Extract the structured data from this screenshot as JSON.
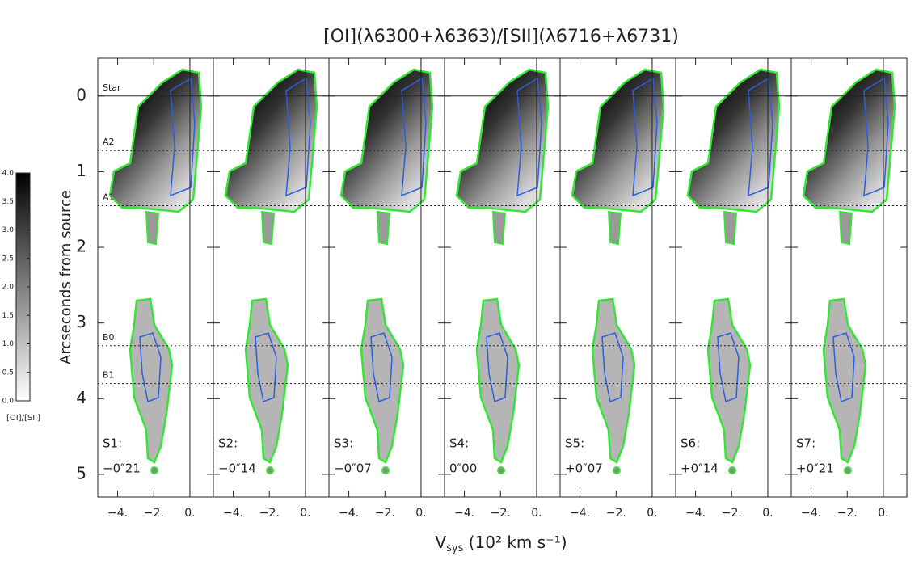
{
  "chart_data": {
    "type": "image-panels",
    "title": "[OI](λ6300+λ6363)/[SII](λ6716+λ6731)",
    "y_label": "Arcseconds from source",
    "x_label": {
      "main": "V",
      "sub": "sys",
      "rest": " (10² km s⁻¹)"
    },
    "ylim": [
      -0.5,
      5.3
    ],
    "yticks": [
      0,
      1,
      2,
      3,
      4,
      5
    ],
    "xlim": [
      -5.1,
      1.3
    ],
    "xticks": [
      {
        "value": -4,
        "label": "−4."
      },
      {
        "value": -2,
        "label": "−2."
      },
      {
        "value": 0,
        "label": "0."
      }
    ],
    "x_reference": 0,
    "reference_lines": [
      {
        "label": "Star",
        "value": 0
      },
      {
        "label": "A2",
        "value": 0.72
      },
      {
        "label": "A1",
        "value": 1.45
      },
      {
        "label": "B0",
        "value": 3.3
      },
      {
        "label": "B1",
        "value": 3.8
      }
    ],
    "panels": [
      {
        "name": "S1:",
        "offset": "−0″21"
      },
      {
        "name": "S2:",
        "offset": "−0″14"
      },
      {
        "name": "S3:",
        "offset": "−0″07"
      },
      {
        "name": "S4:",
        "offset": "0″00"
      },
      {
        "name": "S5:",
        "offset": "+0″07"
      },
      {
        "name": "S6:",
        "offset": "+0″14"
      },
      {
        "name": "S7:",
        "offset": "+0″21"
      }
    ],
    "colorbar": {
      "label": "[OI]/[SII]",
      "ylim": [
        0,
        4
      ],
      "yticks": [
        {
          "value": 0,
          "label": "0.0"
        },
        {
          "value": 0.5,
          "label": "0.5"
        },
        {
          "value": 1,
          "label": "1.0"
        },
        {
          "value": 1.5,
          "label": "1.5"
        },
        {
          "value": 2,
          "label": "2.0"
        },
        {
          "value": 2.5,
          "label": "2.5"
        },
        {
          "value": 3,
          "label": "3.0"
        },
        {
          "value": 3.5,
          "label": "3.5"
        },
        {
          "value": 4,
          "label": "4.0"
        }
      ]
    }
  }
}
